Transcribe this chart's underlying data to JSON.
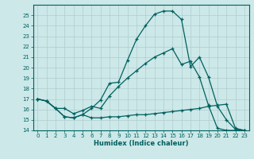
{
  "xlabel": "Humidex (Indice chaleur)",
  "xlim": [
    -0.5,
    23.5
  ],
  "ylim": [
    14,
    26
  ],
  "yticks": [
    14,
    15,
    16,
    17,
    18,
    19,
    20,
    21,
    22,
    23,
    24,
    25
  ],
  "xticks": [
    0,
    1,
    2,
    3,
    4,
    5,
    6,
    7,
    8,
    9,
    10,
    11,
    12,
    13,
    14,
    15,
    16,
    17,
    18,
    19,
    20,
    21,
    22,
    23
  ],
  "bg_color": "#cce8e8",
  "grid_color": "#b0cccc",
  "line_color": "#006060",
  "line1_x": [
    0,
    1,
    2,
    3,
    4,
    5,
    6,
    7,
    8,
    9,
    10,
    11,
    12,
    13,
    14,
    15,
    16,
    17,
    18,
    19,
    20,
    21,
    22,
    23
  ],
  "line1_y": [
    17.0,
    16.8,
    16.1,
    15.3,
    15.2,
    15.5,
    16.1,
    16.9,
    18.5,
    18.6,
    20.7,
    22.7,
    24.0,
    25.1,
    25.4,
    25.4,
    24.6,
    20.1,
    21.0,
    19.1,
    16.3,
    15.0,
    14.1,
    14.0
  ],
  "line2_x": [
    0,
    1,
    2,
    3,
    4,
    5,
    6,
    7,
    8,
    9,
    10,
    11,
    12,
    13,
    14,
    15,
    16,
    17,
    18,
    19,
    20,
    21,
    22,
    23
  ],
  "line2_y": [
    17.0,
    16.8,
    16.1,
    15.3,
    15.2,
    15.5,
    15.2,
    15.2,
    15.3,
    15.3,
    15.4,
    15.5,
    15.5,
    15.6,
    15.7,
    15.8,
    15.9,
    16.0,
    16.1,
    16.3,
    16.4,
    16.5,
    14.2,
    14.0
  ],
  "line3_x": [
    0,
    1,
    2,
    3,
    4,
    5,
    6,
    7,
    8,
    9,
    10,
    11,
    12,
    13,
    14,
    15,
    16,
    17,
    18,
    19,
    20,
    21,
    22,
    23
  ],
  "line3_y": [
    17.0,
    16.8,
    16.1,
    16.1,
    15.6,
    15.9,
    16.3,
    16.1,
    17.3,
    18.2,
    19.0,
    19.7,
    20.4,
    21.0,
    21.4,
    21.8,
    20.3,
    20.6,
    19.1,
    16.4,
    14.2,
    14.0,
    14.0,
    14.0
  ]
}
